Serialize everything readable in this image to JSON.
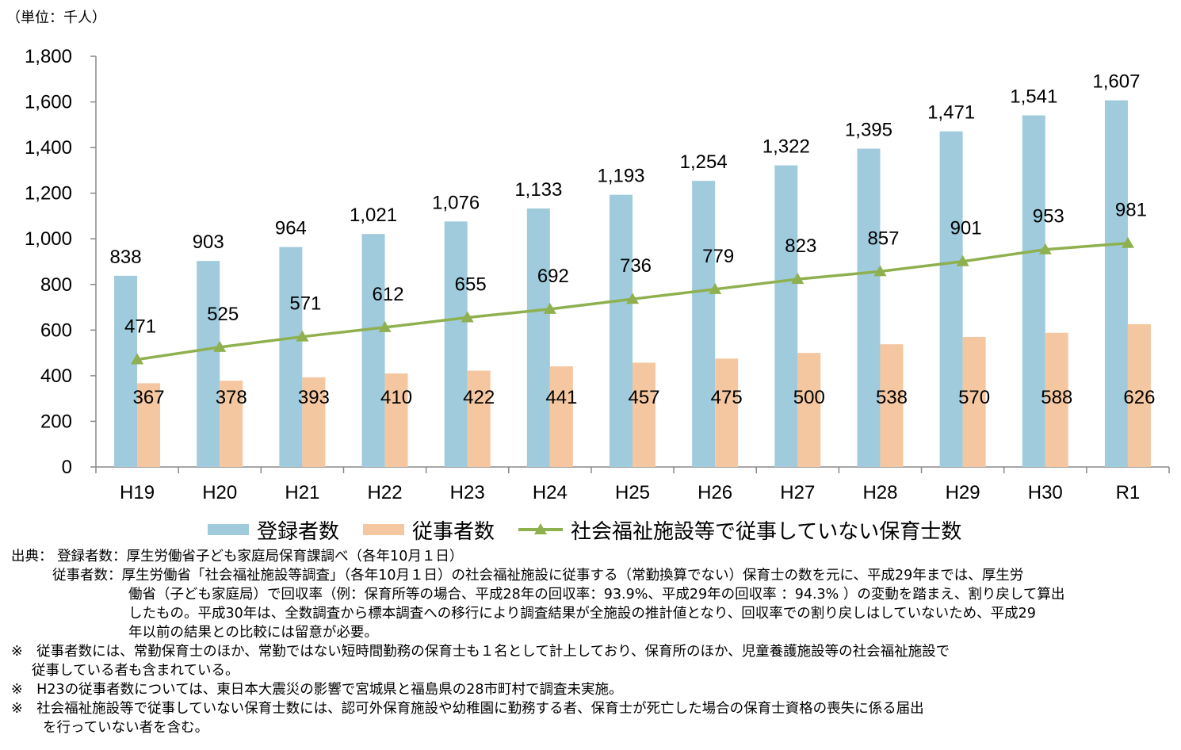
{
  "unit_label": "（単位：千人）",
  "colors": {
    "registered": "#9fcbdc",
    "employed": "#f5c7a1",
    "line": "#8fb04f"
  },
  "chart_data": {
    "type": "bar",
    "categories": [
      "H19",
      "H20",
      "H21",
      "H22",
      "H23",
      "H24",
      "H25",
      "H26",
      "H27",
      "H28",
      "H29",
      "H30",
      "R1"
    ],
    "ylim": [
      0,
      1800
    ],
    "yticks": [
      0,
      200,
      400,
      600,
      800,
      1000,
      1200,
      1400,
      1600,
      1800
    ],
    "ytick_labels": [
      "0",
      "200",
      "400",
      "600",
      "800",
      "1,000",
      "1,200",
      "1,400",
      "1,600",
      "1,800"
    ],
    "series": [
      {
        "name": "登録者数",
        "type": "bar",
        "values": [
          838,
          903,
          964,
          1021,
          1076,
          1133,
          1193,
          1254,
          1322,
          1395,
          1471,
          1541,
          1607
        ],
        "labels": [
          "838",
          "903",
          "964",
          "1,021",
          "1,076",
          "1,133",
          "1,193",
          "1,254",
          "1,322",
          "1,395",
          "1,471",
          "1,541",
          "1,607"
        ]
      },
      {
        "name": "従事者数",
        "type": "bar",
        "values": [
          367,
          378,
          393,
          410,
          422,
          441,
          457,
          475,
          500,
          538,
          570,
          588,
          626
        ],
        "labels": [
          "367",
          "378",
          "393",
          "410",
          "422",
          "441",
          "457",
          "475",
          "500",
          "538",
          "570",
          "588",
          "626"
        ]
      },
      {
        "name": "社会福祉施設等で従事していない保育士数",
        "type": "line",
        "values": [
          471,
          525,
          571,
          612,
          655,
          692,
          736,
          779,
          823,
          857,
          901,
          953,
          981
        ],
        "labels": [
          "471",
          "525",
          "571",
          "612",
          "655",
          "692",
          "736",
          "779",
          "823",
          "857",
          "901",
          "953",
          "981"
        ]
      }
    ],
    "legend_position": "bottom"
  },
  "notes": [
    "出典：  登録者数：厚生労働省子ども家庭局保育課調べ（各年10月１日）",
    "従事者数：厚生労働省「社会福祉施設等調査」（各年10月１日）の社会福祉施設に従事する（常勤換算でない）保育士の数を元に、平成29年までは、厚生労",
    "働省（子ども家庭局）で回収率（例：保育所等の場合、平成28年の回収率：93.9%、平成29年の回収率 ：94.3% ）の変動を踏まえ、割り戻して算出",
    "したもの。平成30年は、全数調査から標本調査への移行により調査結果が全施設の推計値となり、回収率での割り戻しはしていないため、平成29",
    "年以前の結果との比較には留意が必要。",
    "※　従事者数には、常勤保育士のほか、常勤ではない短時間勤務の保育士も１名として計上しており、保育所のほか、児童養護施設等の社会福祉施設で",
    "従事している者も含まれている。",
    "※　H23の従事者数については、東日本大震災の影響で宮城県と福島県の28市町村で調査未実施。",
    "※　社会福祉施設等で従事していない保育士数には、認可外保育施設や幼稚園に勤務する者、保育士が死亡した場合の保育士資格の喪失に係る届出",
    "を行っていない者を含む。"
  ]
}
